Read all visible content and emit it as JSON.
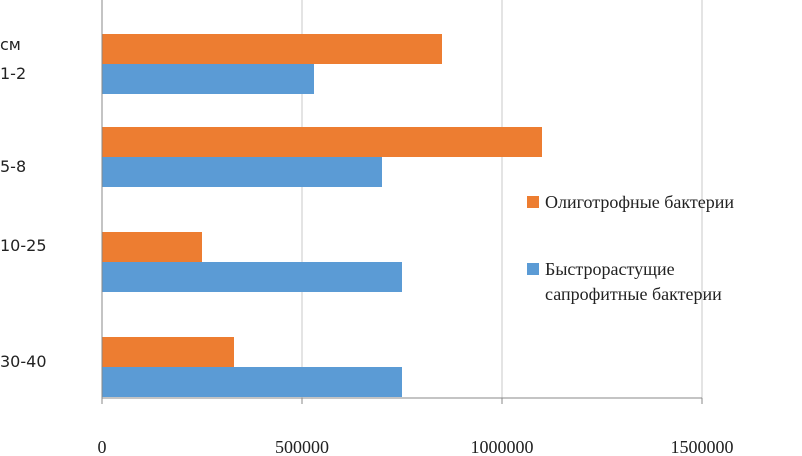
{
  "chart_data": {
    "type": "bar",
    "orientation": "horizontal",
    "y_unit_label": "см",
    "categories": [
      "1-2",
      "5-8",
      "10-25",
      "30-40"
    ],
    "series": [
      {
        "name": "Олиготрофные бактерии",
        "values": [
          850000,
          1100000,
          250000,
          330000
        ],
        "color": "#ED7D31"
      },
      {
        "name": "Быстрорастущие сапрофитные бактерии",
        "values": [
          530000,
          700000,
          750000,
          750000
        ],
        "color": "#5B9BD5"
      }
    ],
    "x_ticks": [
      "0",
      "500000",
      "1000000",
      "1500000"
    ],
    "xlim": [
      0,
      1500000
    ],
    "grid": true,
    "legend_position": "right"
  }
}
